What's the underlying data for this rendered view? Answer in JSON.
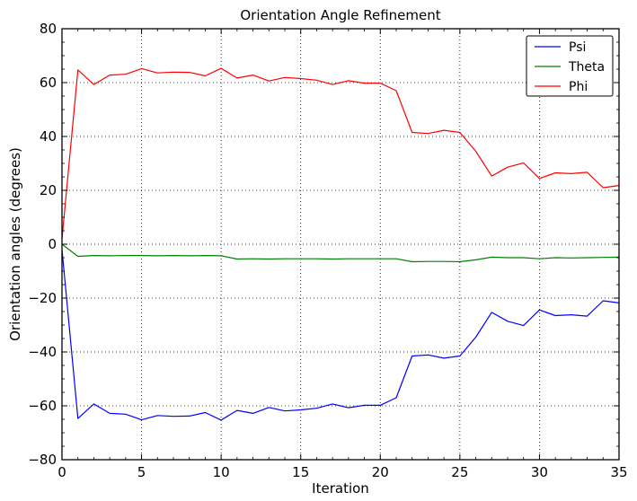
{
  "chart_data": {
    "type": "line",
    "title": "Orientation Angle Refinement",
    "xlabel": "Iteration",
    "ylabel": "Orientation angles (degrees)",
    "xlim": [
      0,
      35
    ],
    "ylim": [
      -80,
      80
    ],
    "xticks": [
      0,
      5,
      10,
      15,
      20,
      25,
      30,
      35
    ],
    "yticks": [
      -80,
      -60,
      -40,
      -20,
      0,
      20,
      40,
      60,
      80
    ],
    "xtick_labels": [
      "0",
      "5",
      "10",
      "15",
      "20",
      "25",
      "30",
      "35"
    ],
    "ytick_labels": [
      "−80",
      "−60",
      "−40",
      "−20",
      "0",
      "20",
      "40",
      "60",
      "80"
    ],
    "grid": true,
    "legend_position": "top-right",
    "x": [
      0,
      1,
      2,
      3,
      4,
      5,
      6,
      7,
      8,
      9,
      10,
      11,
      12,
      13,
      14,
      15,
      16,
      17,
      18,
      19,
      20,
      21,
      22,
      23,
      24,
      25,
      26,
      27,
      28,
      29,
      30,
      31,
      32,
      33,
      34,
      35
    ],
    "series": [
      {
        "name": "Psi",
        "color": "#0000ff",
        "values": [
          -2,
          -64.7,
          -59.3,
          -62.8,
          -63.1,
          -65.2,
          -63.6,
          -63.9,
          -63.8,
          -62.5,
          -65.3,
          -61.7,
          -62.8,
          -60.6,
          -61.9,
          -61.5,
          -60.9,
          -59.3,
          -60.7,
          -59.8,
          -59.8,
          -57,
          -41.5,
          -41.1,
          -42.3,
          -41.5,
          -34.5,
          -25.3,
          -28.6,
          -30.2,
          -24.4,
          -26.5,
          -26.2,
          -26.7,
          -21,
          -21.8
        ]
      },
      {
        "name": "Theta",
        "color": "#008000",
        "values": [
          0,
          -4.5,
          -4.2,
          -4.3,
          -4.2,
          -4.2,
          -4.3,
          -4.2,
          -4.3,
          -4.2,
          -4.3,
          -5.5,
          -5.4,
          -5.5,
          -5.4,
          -5.4,
          -5.4,
          -5.5,
          -5.4,
          -5.4,
          -5.4,
          -5.4,
          -6.5,
          -6.4,
          -6.4,
          -6.5,
          -5.8,
          -4.8,
          -5,
          -5,
          -5.4,
          -5,
          -5.1,
          -5,
          -4.9,
          -4.8
        ]
      },
      {
        "name": "Phi",
        "color": "#ff0000",
        "values": [
          2,
          64.7,
          59.3,
          62.8,
          63.1,
          65.2,
          63.6,
          63.9,
          63.8,
          62.5,
          65.3,
          61.7,
          62.8,
          60.6,
          61.9,
          61.5,
          60.9,
          59.3,
          60.7,
          59.8,
          59.8,
          57,
          41.5,
          41.1,
          42.3,
          41.5,
          34.5,
          25.3,
          28.6,
          30.2,
          24.4,
          26.5,
          26.2,
          26.7,
          21,
          21.8
        ]
      }
    ]
  }
}
